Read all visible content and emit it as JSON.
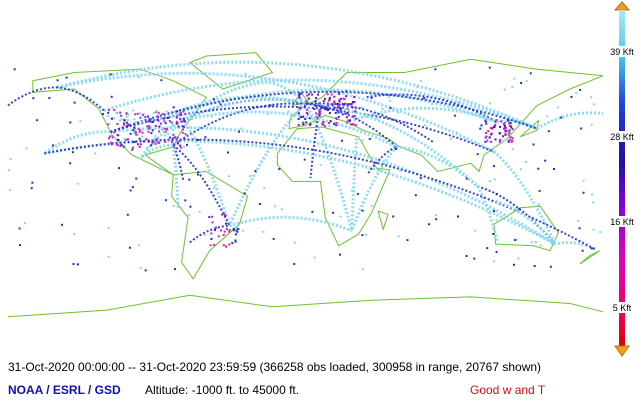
{
  "caption": "31-Oct-2020 00:00:00 -- 31-Oct-2020 23:59:59 (366258 obs loaded, 300958 in range, 20767 shown)",
  "credit": "NOAA / ESRL / GSD",
  "altitude_range": "Altitude: -1000 ft. to 45000 ft.",
  "filter": "Good w and T",
  "legend": {
    "labels": [
      "39 Kft",
      "28 Kft",
      "16 Kft",
      "5 Kft"
    ]
  }
}
